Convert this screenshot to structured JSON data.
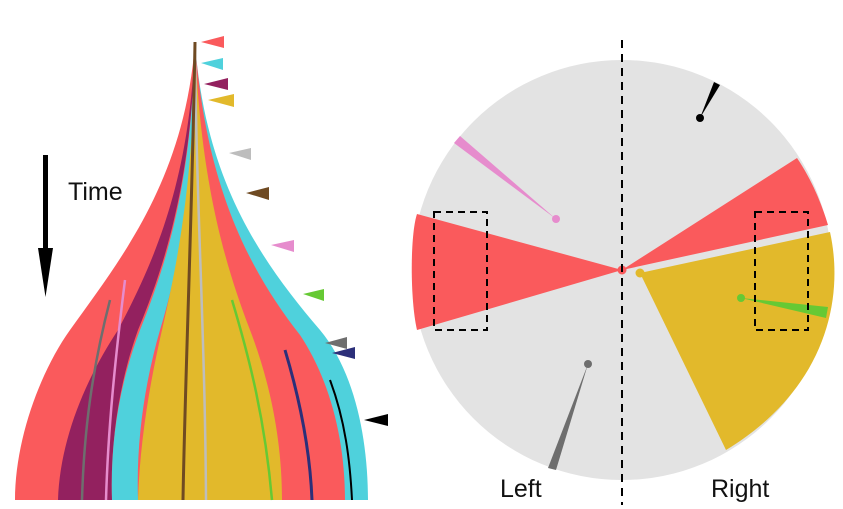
{
  "left_panel": {
    "time_label": "Time",
    "colors": {
      "red": "#fa5a5c",
      "cyan": "#4fd1dc",
      "purple": "#93215f",
      "gold": "#e2b92b",
      "gray": "#bdbdbd",
      "brown": "#6f4a22",
      "pink": "#e68ccd",
      "green": "#66c934",
      "dark-gray": "#6e6e6e",
      "navy": "#2c2f79",
      "black": "#000000"
    },
    "marker_order": [
      "red",
      "cyan",
      "purple",
      "gold",
      "gray",
      "brown",
      "pink",
      "green",
      "dark-gray",
      "navy",
      "black"
    ]
  },
  "right_panel": {
    "left_label": "Left",
    "right_label": "Right",
    "disk_color": "#e3e3e3"
  }
}
